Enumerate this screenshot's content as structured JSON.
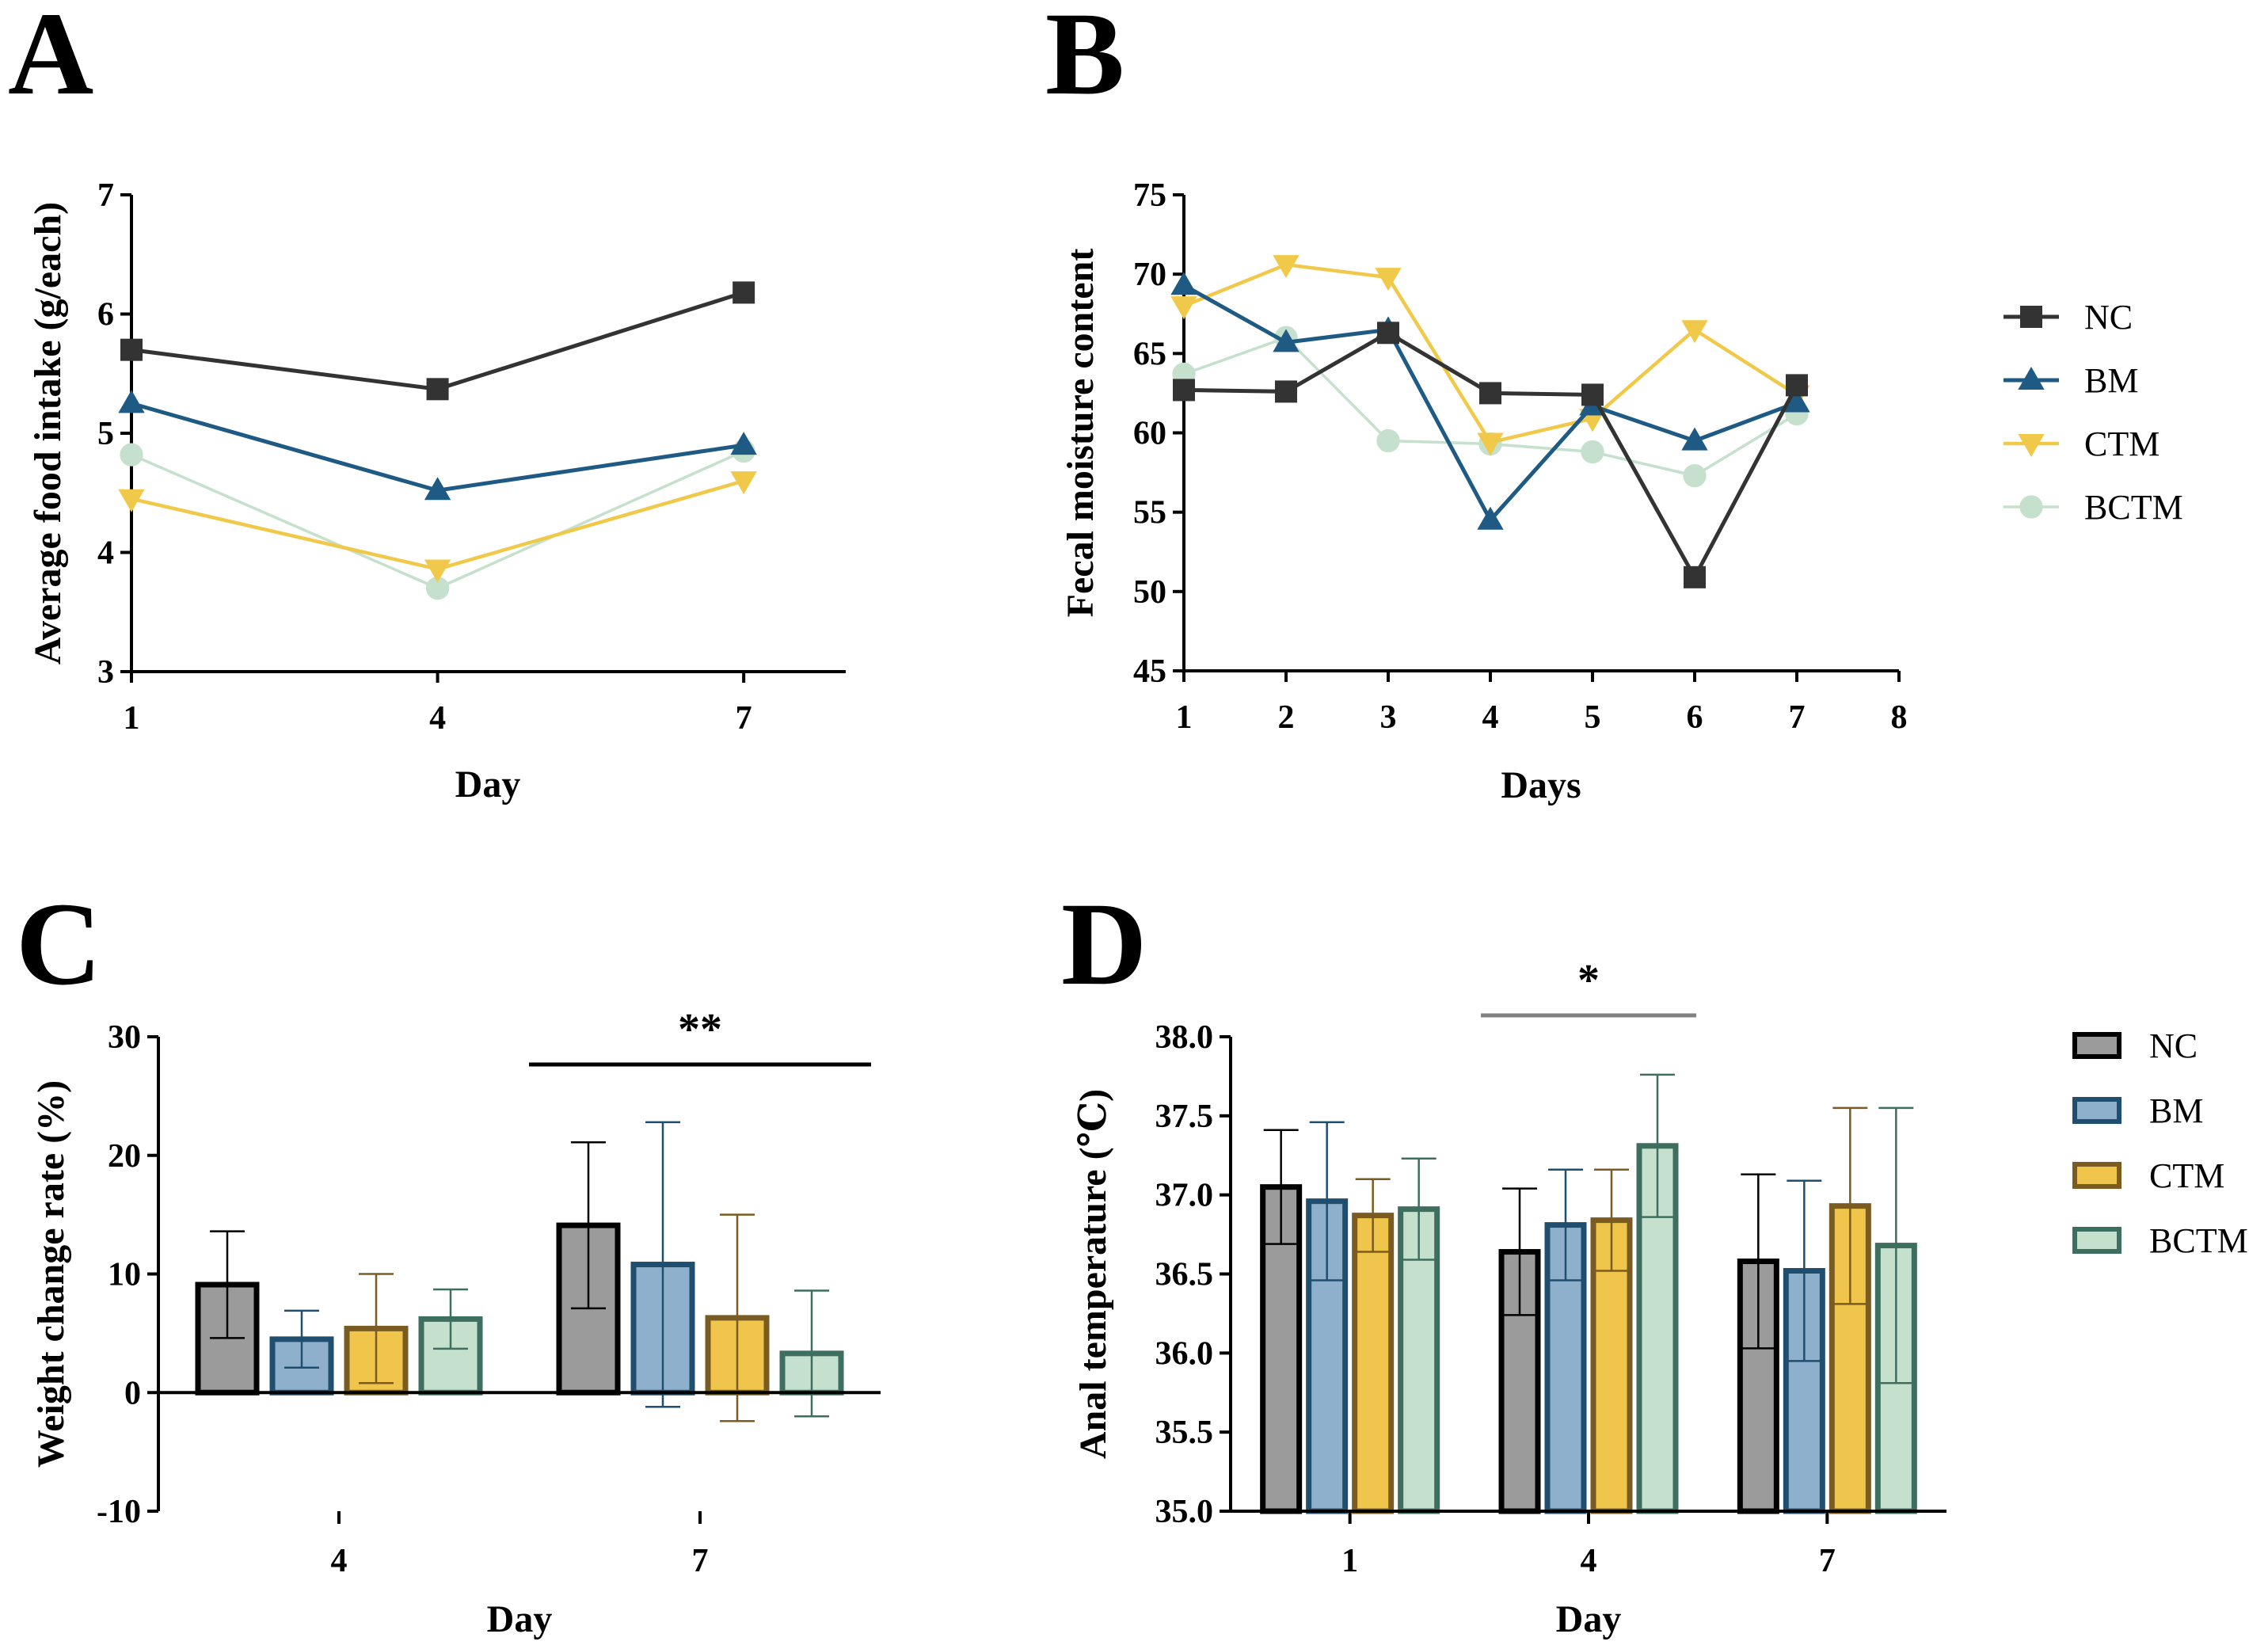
{
  "colors": {
    "NC": "#333333",
    "BM": "#1f5a85",
    "CTM": "#f0c94a",
    "BCTM": "#c5e0cc",
    "NC_bar": "#9b9b9b",
    "BM_bar": "#8eb0cc",
    "CTM_bar": "#efc64b",
    "BCTM_bar": "#c5e0cc",
    "NC_edge": "#000000",
    "BM_edge": "#1f4e6f",
    "CTM_edge": "#7a5c22",
    "BCTM_edge": "#3d6e60"
  },
  "chart_data": [
    {
      "id": "A",
      "panel_label": "A",
      "type": "line",
      "xlabel": "Day",
      "ylabel": "Average food intake (g/each)",
      "x": [
        1,
        4,
        7
      ],
      "xticks": [
        "1",
        "4",
        "7"
      ],
      "xlim": [
        1,
        8
      ],
      "ylim": [
        3,
        7
      ],
      "yticks": [
        "3",
        "4",
        "5",
        "6",
        "7"
      ],
      "series": [
        {
          "name": "NC",
          "marker": "square",
          "values": [
            5.7,
            5.37,
            6.18
          ]
        },
        {
          "name": "BM",
          "marker": "triangle-up",
          "values": [
            5.25,
            4.52,
            4.9
          ]
        },
        {
          "name": "CTM",
          "marker": "triangle-down",
          "values": [
            4.45,
            3.86,
            4.6
          ]
        },
        {
          "name": "BCTM",
          "marker": "circle",
          "values": [
            4.82,
            3.7,
            4.85
          ]
        }
      ]
    },
    {
      "id": "B",
      "panel_label": "B",
      "type": "line",
      "xlabel": "Days",
      "ylabel": "Fecal moisture content",
      "x": [
        1,
        2,
        3,
        4,
        5,
        6,
        7
      ],
      "xticks": [
        "1",
        "2",
        "3",
        "4",
        "5",
        "6",
        "7",
        "8"
      ],
      "xlim": [
        1,
        8
      ],
      "ylim": [
        45,
        75
      ],
      "yticks": [
        "45",
        "50",
        "55",
        "60",
        "65",
        "70",
        "75"
      ],
      "legend": [
        "NC",
        "BM",
        "CTM",
        "BCTM"
      ],
      "series": [
        {
          "name": "NC",
          "marker": "square",
          "values": [
            62.7,
            62.6,
            66.3,
            62.5,
            62.4,
            50.9,
            63.0
          ]
        },
        {
          "name": "BM",
          "marker": "triangle-up",
          "values": [
            69.3,
            65.7,
            66.5,
            54.5,
            61.7,
            59.5,
            61.9
          ]
        },
        {
          "name": "CTM",
          "marker": "triangle-down",
          "values": [
            68.0,
            70.6,
            69.8,
            59.4,
            60.9,
            66.5,
            62.4
          ]
        },
        {
          "name": "BCTM",
          "marker": "circle",
          "values": [
            63.7,
            66.0,
            59.5,
            59.3,
            58.8,
            57.3,
            61.2
          ]
        }
      ]
    },
    {
      "id": "C",
      "panel_label": "C",
      "type": "bar",
      "xlabel": "Day",
      "ylabel": "Weight change rate (%)",
      "categories": [
        "4",
        "7"
      ],
      "ylim": [
        -10,
        30
      ],
      "yticks": [
        "-10",
        "0",
        "10",
        "20",
        "30"
      ],
      "series": [
        {
          "name": "NC",
          "values": [
            9.1,
            14.1
          ],
          "errors": [
            4.5,
            7.0
          ]
        },
        {
          "name": "BM",
          "values": [
            4.5,
            10.8
          ],
          "errors": [
            2.4,
            12.0
          ]
        },
        {
          "name": "CTM",
          "values": [
            5.4,
            6.3
          ],
          "errors": [
            4.6,
            8.7
          ]
        },
        {
          "name": "BCTM",
          "values": [
            6.2,
            3.3
          ],
          "errors": [
            2.5,
            5.3
          ]
        }
      ],
      "significance": [
        {
          "label": "**",
          "category": "7",
          "from": "NC",
          "to": "BCTM"
        }
      ]
    },
    {
      "id": "D",
      "panel_label": "D",
      "type": "bar",
      "xlabel": "Day",
      "ylabel": "Anal temperature (℃)",
      "categories": [
        "1",
        "4",
        "7"
      ],
      "ylim": [
        35.0,
        38.0
      ],
      "yticks": [
        "35.0",
        "35.5",
        "36.0",
        "36.5",
        "37.0",
        "37.5",
        "38.0"
      ],
      "legend": [
        "NC",
        "BM",
        "CTM",
        "BCTM"
      ],
      "series": [
        {
          "name": "NC",
          "values": [
            37.05,
            36.64,
            36.58
          ],
          "errors": [
            0.36,
            0.4,
            0.55
          ]
        },
        {
          "name": "BM",
          "values": [
            36.96,
            36.81,
            36.52
          ],
          "errors": [
            0.5,
            0.35,
            0.57
          ]
        },
        {
          "name": "CTM",
          "values": [
            36.87,
            36.84,
            36.93
          ],
          "errors": [
            0.23,
            0.32,
            0.62
          ]
        },
        {
          "name": "BCTM",
          "values": [
            36.91,
            37.31,
            36.68
          ],
          "errors": [
            0.32,
            0.45,
            0.87
          ]
        }
      ],
      "significance": [
        {
          "label": "*",
          "category": "4",
          "from": "NC",
          "to": "BCTM"
        }
      ]
    }
  ]
}
